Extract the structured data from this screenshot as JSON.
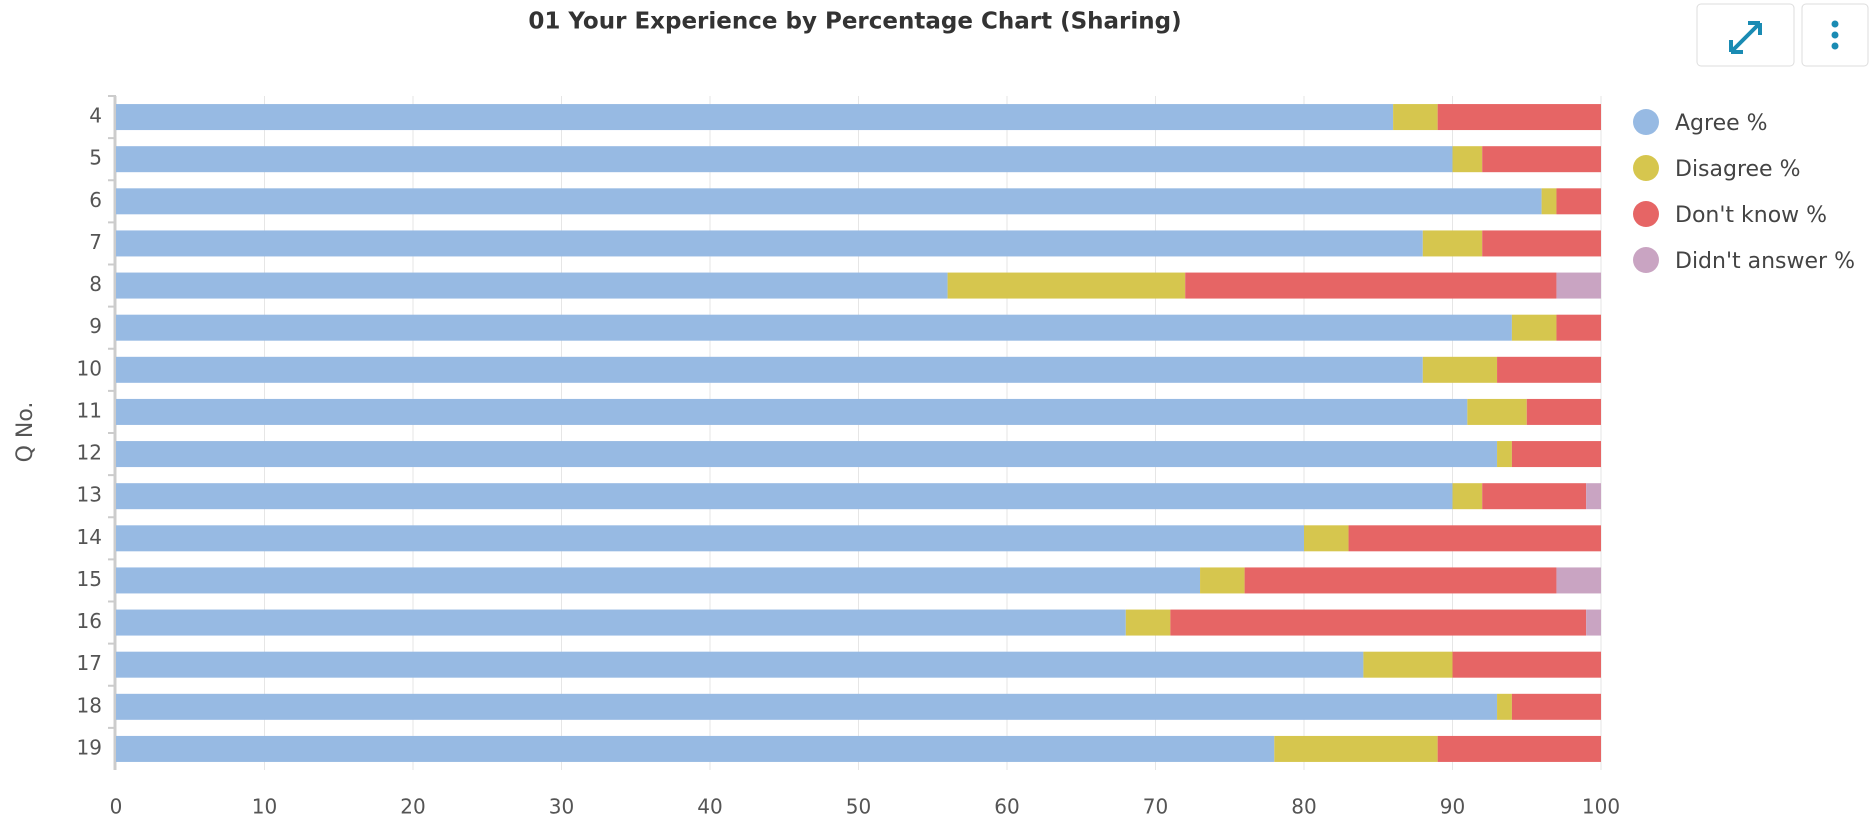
{
  "chart_data": {
    "type": "stacked-barh",
    "title": "01 Your Experience by Percentage Chart (Sharing)",
    "ylabel": "Q No.",
    "categories": [
      "4",
      "5",
      "6",
      "7",
      "8",
      "9",
      "10",
      "11",
      "12",
      "13",
      "14",
      "15",
      "16",
      "17",
      "18",
      "19"
    ],
    "series": [
      {
        "name": "Agree %",
        "color": "#97bae3",
        "values": [
          86,
          90,
          96,
          88,
          56,
          94,
          88,
          91,
          93,
          90,
          80,
          73,
          68,
          84,
          93,
          78
        ]
      },
      {
        "name": "Disagree %",
        "color": "#d6c64e",
        "values": [
          3,
          2,
          1,
          4,
          16,
          3,
          5,
          4,
          1,
          2,
          3,
          3,
          3,
          6,
          1,
          11
        ]
      },
      {
        "name": "Don't know %",
        "color": "#e66565",
        "values": [
          11,
          8,
          3,
          8,
          25,
          3,
          7,
          5,
          6,
          7,
          17,
          21,
          28,
          10,
          6,
          11
        ]
      },
      {
        "name": "Didn't answer %",
        "color": "#c9a4c2",
        "values": [
          0,
          0,
          0,
          0,
          3,
          0,
          0,
          0,
          0,
          1,
          0,
          3,
          1,
          0,
          0,
          0
        ]
      }
    ],
    "xlim": [
      0,
      100
    ],
    "xticks": [
      0,
      10,
      20,
      30,
      40,
      50,
      60,
      70,
      80,
      90,
      100
    ],
    "grid": true,
    "legend": "right"
  }
}
